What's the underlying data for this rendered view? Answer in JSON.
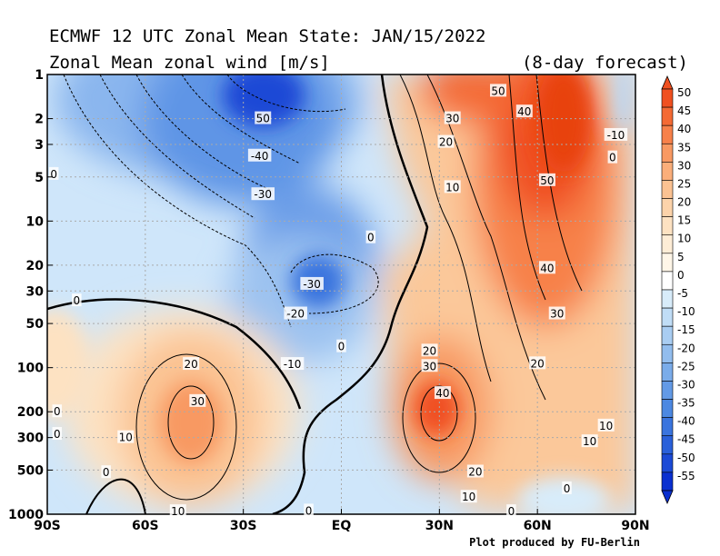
{
  "chart_data": {
    "type": "heatmap",
    "title": "ECMWF 12 UTC Zonal Mean State: JAN/15/2022",
    "subtitle": "Zonal Mean zonal wind [m/s]",
    "annotation": "(8-day forecast)",
    "credit": "Plot produced by FU-Berlin",
    "x_ticks": [
      "90S",
      "60S",
      "30S",
      "EQ",
      "30N",
      "60N",
      "90N"
    ],
    "x_values": [
      -90,
      -60,
      -30,
      0,
      30,
      60,
      90
    ],
    "y_ticks": [
      "1",
      "2",
      "3",
      "5",
      "10",
      "20",
      "30",
      "50",
      "100",
      "200",
      "300",
      "500",
      "1000"
    ],
    "y_values": [
      1,
      2,
      3,
      5,
      10,
      20,
      30,
      50,
      100,
      200,
      300,
      500,
      1000
    ],
    "y_scale": "log",
    "grid": true,
    "colorbar_levels": [
      50,
      45,
      40,
      35,
      30,
      25,
      20,
      15,
      10,
      5,
      0,
      -5,
      -10,
      -15,
      -20,
      -25,
      -30,
      -35,
      -40,
      -45,
      -50,
      -55
    ],
    "colorbar_labels": [
      "50",
      "45",
      "40",
      "35",
      "30",
      "25",
      "20",
      "15",
      "10",
      "5",
      "0",
      "-5",
      "-10",
      "-15",
      "-20",
      "-25",
      "-30",
      "-35",
      "-40",
      "-45",
      "-50",
      "-55"
    ],
    "colorbar_colors": [
      "#f05020",
      "#f46a34",
      "#f7814a",
      "#f89962",
      "#faae7a",
      "#fbc292",
      "#fcd3aa",
      "#fde2c2",
      "#feedd6",
      "#fff6e8",
      "#ffffff",
      "#d8ecfa",
      "#c0ddf6",
      "#a9cdf2",
      "#92bdee",
      "#7aacea",
      "#639ae6",
      "#4c88e2",
      "#3a74de",
      "#2a60da",
      "#1b4ad6",
      "#0a30d0"
    ],
    "contour_labels": [
      {
        "text": "50",
        "lat": -24,
        "p": 2
      },
      {
        "text": "-40",
        "lat": -25,
        "p": 3.6
      },
      {
        "text": "-30",
        "lat": -24,
        "p": 6.6
      },
      {
        "text": "0",
        "lat": 9,
        "p": 13
      },
      {
        "text": "-30",
        "lat": -9,
        "p": 27
      },
      {
        "text": "-20",
        "lat": -14,
        "p": 43
      },
      {
        "text": "0",
        "lat": 0,
        "p": 72
      },
      {
        "text": "-10",
        "lat": -15,
        "p": 95
      },
      {
        "text": "0",
        "lat": -88,
        "p": 4.8
      },
      {
        "text": "0",
        "lat": -81,
        "p": 35
      },
      {
        "text": "20",
        "lat": -46,
        "p": 95
      },
      {
        "text": "30",
        "lat": -44,
        "p": 170
      },
      {
        "text": "10",
        "lat": -66,
        "p": 300
      },
      {
        "text": "0",
        "lat": -72,
        "p": 520
      },
      {
        "text": "0",
        "lat": -87,
        "p": 200
      },
      {
        "text": "0",
        "lat": -87,
        "p": 285
      },
      {
        "text": "10",
        "lat": -50,
        "p": 960
      },
      {
        "text": "0",
        "lat": -10,
        "p": 950
      },
      {
        "text": "50",
        "lat": 48,
        "p": 1.3
      },
      {
        "text": "40",
        "lat": 56,
        "p": 1.8
      },
      {
        "text": "30",
        "lat": 34,
        "p": 2
      },
      {
        "text": "20",
        "lat": 32,
        "p": 2.9
      },
      {
        "text": "10",
        "lat": 34,
        "p": 5.9
      },
      {
        "text": "50",
        "lat": 63,
        "p": 5.3
      },
      {
        "text": "40",
        "lat": 63,
        "p": 21
      },
      {
        "text": "30",
        "lat": 66,
        "p": 43
      },
      {
        "text": "20",
        "lat": 60,
        "p": 94
      },
      {
        "text": "20",
        "lat": 27,
        "p": 77
      },
      {
        "text": "30",
        "lat": 27,
        "p": 98
      },
      {
        "text": "40",
        "lat": 31,
        "p": 150
      },
      {
        "text": "20",
        "lat": 41,
        "p": 515
      },
      {
        "text": "10",
        "lat": 39,
        "p": 765
      },
      {
        "text": "10",
        "lat": 81,
        "p": 250
      },
      {
        "text": "10",
        "lat": 76,
        "p": 320
      },
      {
        "text": "0",
        "lat": 69,
        "p": 670
      },
      {
        "text": "-10",
        "lat": 84,
        "p": 2.6
      },
      {
        "text": "0",
        "lat": 83,
        "p": 3.7
      },
      {
        "text": "0",
        "lat": 52,
        "p": 960
      }
    ]
  },
  "colors": {
    "positive_max": "#e83a10",
    "negative_max": "#0a30d0",
    "zero": "#ffffff"
  }
}
